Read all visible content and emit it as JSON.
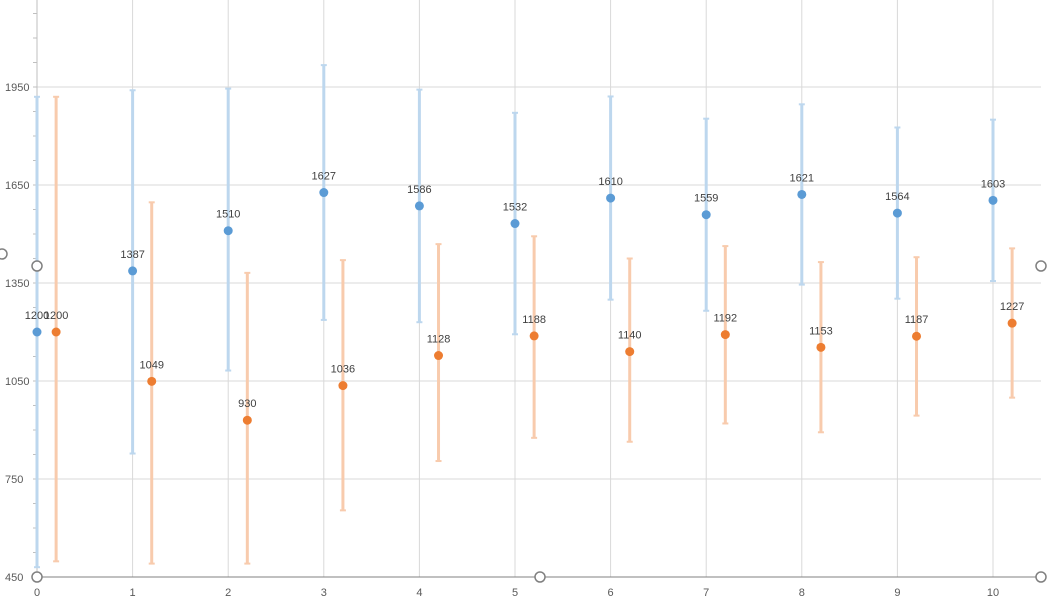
{
  "chart_data": {
    "type": "scatter",
    "title": "",
    "xlabel": "",
    "ylabel": "",
    "xlim": [
      0,
      10
    ],
    "ylim": [
      450,
      2250
    ],
    "x_ticks": [
      "0",
      "1",
      "2",
      "3",
      "4",
      "5",
      "6",
      "7",
      "8",
      "9",
      "10"
    ],
    "y_ticks": [
      "450",
      "750",
      "1050",
      "1350",
      "1650",
      "1950"
    ],
    "grid": true,
    "legend": "none",
    "series": [
      {
        "color": "#5b9bd5",
        "error_color": "#bdd7ee",
        "x_offset": 0,
        "x": [
          0,
          1,
          2,
          3,
          4,
          5,
          6,
          7,
          8,
          9,
          10
        ],
        "values": [
          1200,
          1387,
          1510,
          1627,
          1586,
          1532,
          1610,
          1559,
          1621,
          1564,
          1603
        ],
        "labels": [
          "1200",
          "1387",
          "1510",
          "1627",
          "1586",
          "1532",
          "1610",
          "1559",
          "1621",
          "1564",
          "1603"
        ],
        "error_high": [
          1920,
          1940,
          1945,
          2017,
          1942,
          1871,
          1921,
          1853,
          1897,
          1826,
          1850
        ],
        "error_low": [
          480,
          828,
          1082,
          1237,
          1230,
          1193,
          1299,
          1265,
          1345,
          1302,
          1356
        ]
      },
      {
        "color": "#ed7d31",
        "error_color": "#f8cbad",
        "x_offset": 0.2,
        "x": [
          0,
          1,
          2,
          3,
          4,
          5,
          6,
          7,
          8,
          9,
          10
        ],
        "values": [
          1200,
          1049,
          930,
          1036,
          1128,
          1188,
          1140,
          1192,
          1153,
          1187,
          1227
        ],
        "labels": [
          "1200",
          "1049",
          "930",
          "1036",
          "1128",
          "1188",
          "1140",
          "1192",
          "1153",
          "1187",
          "1227"
        ],
        "error_high": [
          1920,
          1597,
          1381,
          1420,
          1469,
          1493,
          1425,
          1463,
          1414,
          1429,
          1456
        ],
        "error_low": [
          498,
          491,
          491,
          654,
          805,
          876,
          864,
          920,
          893,
          944,
          999
        ]
      }
    ]
  }
}
